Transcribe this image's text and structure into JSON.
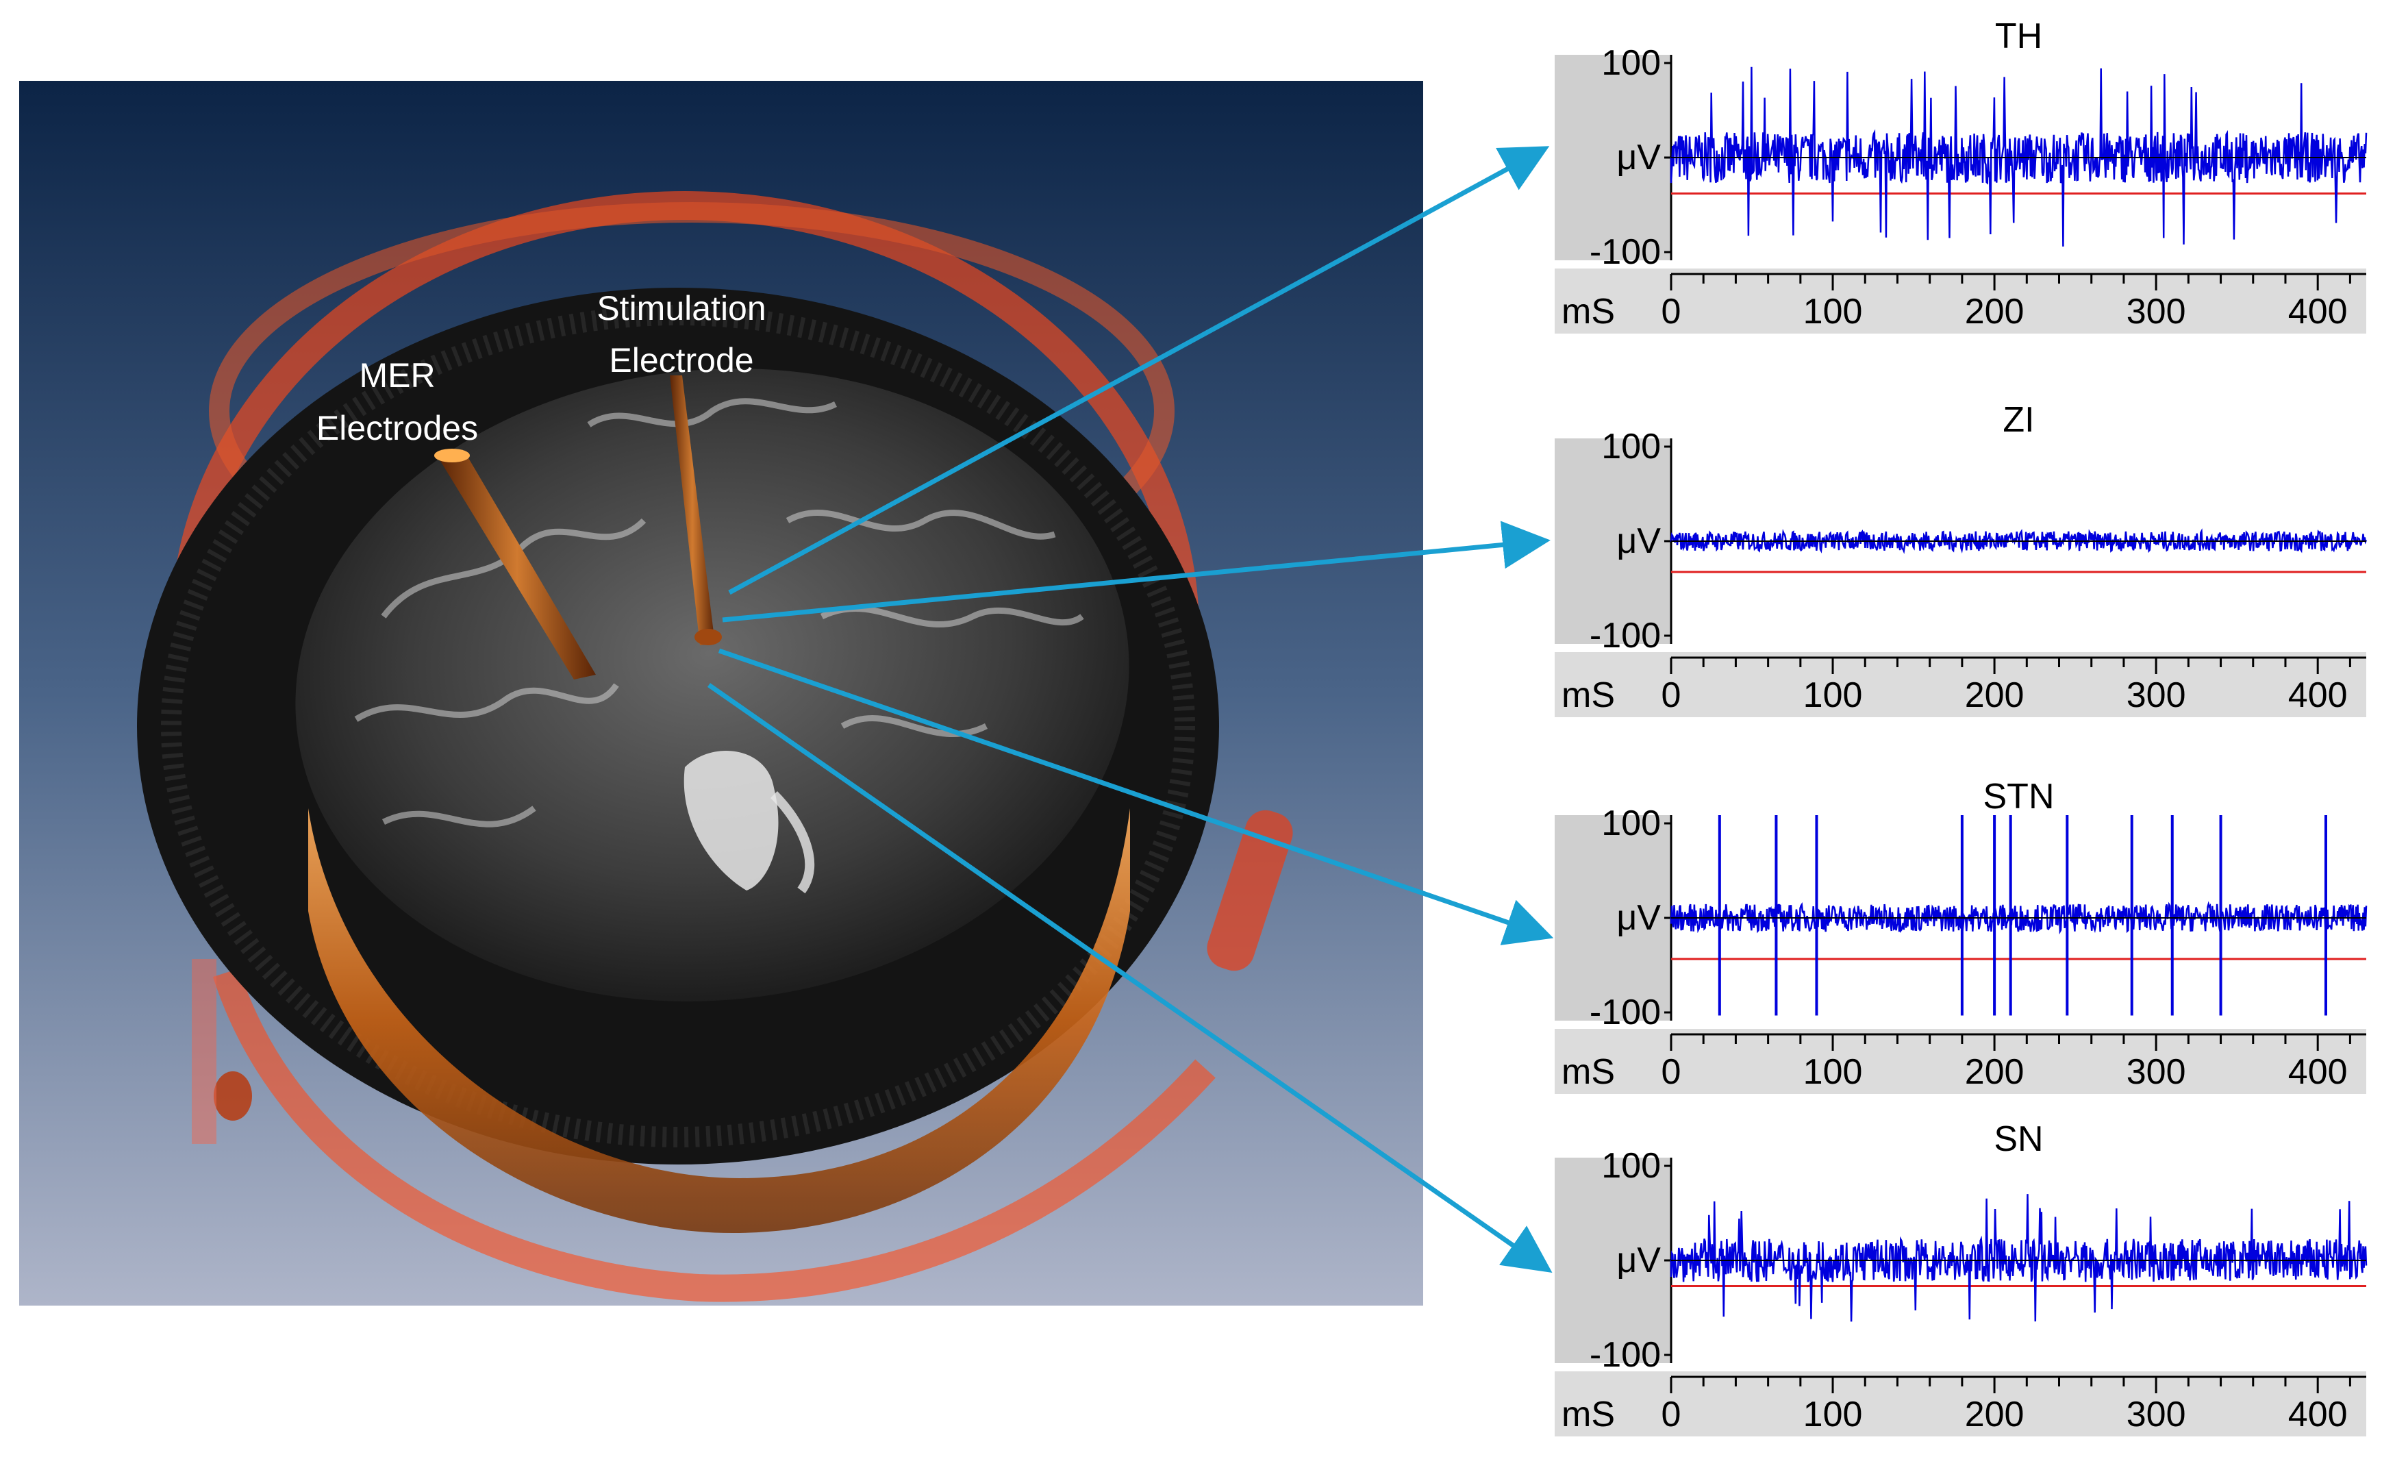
{
  "figure": {
    "brain_view": {
      "labels": {
        "mer_line1": "MER",
        "mer_line2": "Electrodes",
        "stim_line1": "Stimulation",
        "stim_line2": "Electrode"
      },
      "colors": {
        "bg_top": "#0c2446",
        "bg_bottom": "#aeb5c9",
        "red_surface": "#ff4a18",
        "orange_surface": "#d8741c",
        "electrode": "#8a3a0a",
        "arrow": "#1aa0d2"
      }
    },
    "recordings": [
      {
        "title": "TH",
        "y_top": "100",
        "y_mid": "μV",
        "y_bot": "-100",
        "x_unit": "mS",
        "x_ticks": [
          "0",
          "100",
          "200",
          "300",
          "400"
        ],
        "pattern": "bursty",
        "amplitude_uV": 45,
        "threshold_uV": -35
      },
      {
        "title": "ZI",
        "y_top": "100",
        "y_mid": "μV",
        "y_bot": "-100",
        "x_unit": "mS",
        "x_ticks": [
          "0",
          "100",
          "200",
          "300",
          "400"
        ],
        "pattern": "quiet",
        "amplitude_uV": 12,
        "threshold_uV": -30
      },
      {
        "title": "STN",
        "y_top": "100",
        "y_mid": "μV",
        "y_bot": "-100",
        "x_unit": "mS",
        "x_ticks": [
          "0",
          "100",
          "200",
          "300",
          "400"
        ],
        "pattern": "spiking",
        "amplitude_uV": 18,
        "threshold_uV": -40,
        "spike_times_ms": [
          30,
          65,
          90,
          180,
          200,
          210,
          245,
          285,
          310,
          340,
          405
        ]
      },
      {
        "title": "SN",
        "y_top": "100",
        "y_mid": "μV",
        "y_bot": "-100",
        "x_unit": "mS",
        "x_ticks": [
          "0",
          "100",
          "200",
          "300",
          "400"
        ],
        "pattern": "dense",
        "amplitude_uV": 30,
        "threshold_uV": -25
      }
    ],
    "trace_color": "#0000dd",
    "threshold_color": "#e02020"
  }
}
